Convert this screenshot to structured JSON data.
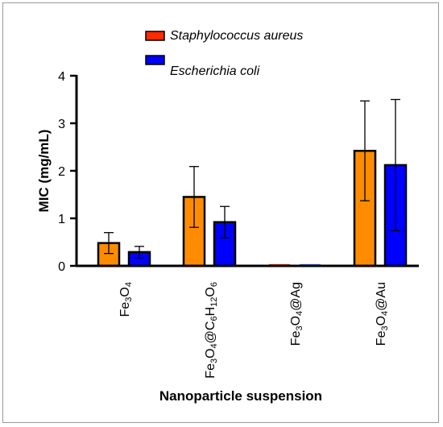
{
  "chart_data": {
    "type": "bar",
    "ylabel": "MIC (mg/mL)",
    "xlabel": "Nanoparticle suspension",
    "ylim": [
      0,
      4
    ],
    "yticks": [
      "0",
      "1",
      "2",
      "3",
      "4"
    ],
    "categories": [
      {
        "base": "Fe",
        "parts": [
          [
            "Fe",
            false
          ],
          [
            "3",
            true
          ],
          [
            "O",
            false
          ],
          [
            "4",
            true
          ]
        ]
      },
      {
        "base": "Fe3O4@C6H12O6",
        "parts": [
          [
            "Fe",
            false
          ],
          [
            "3",
            true
          ],
          [
            "O",
            false
          ],
          [
            "4",
            true
          ],
          [
            "@C",
            false
          ],
          [
            "6",
            true
          ],
          [
            "H",
            false
          ],
          [
            "12",
            true
          ],
          [
            "O",
            false
          ],
          [
            "6",
            true
          ]
        ]
      },
      {
        "base": "Fe3O4@Ag",
        "parts": [
          [
            "Fe",
            false
          ],
          [
            "3",
            true
          ],
          [
            "O",
            false
          ],
          [
            "4",
            true
          ],
          [
            "@Ag",
            false
          ]
        ]
      },
      {
        "base": "Fe3O4@Au",
        "parts": [
          [
            "Fe",
            false
          ],
          [
            "3",
            true
          ],
          [
            "O",
            false
          ],
          [
            "4",
            true
          ],
          [
            "@Au",
            false
          ]
        ]
      }
    ],
    "series": [
      {
        "name": "Staphylococcus aureus",
        "color": "#FF8C00",
        "legend_color": "#FF2A00",
        "values": [
          0.48,
          1.45,
          0.02,
          2.42
        ],
        "errors": [
          0.22,
          0.64,
          0.0,
          1.05
        ]
      },
      {
        "name": "Escherichia coli",
        "color": "#0000FF",
        "legend_color": "#0000FF",
        "values": [
          0.29,
          0.92,
          0.02,
          2.12
        ],
        "errors": [
          0.12,
          0.33,
          0.0,
          1.38
        ]
      }
    ],
    "legend_position": "top-center"
  }
}
